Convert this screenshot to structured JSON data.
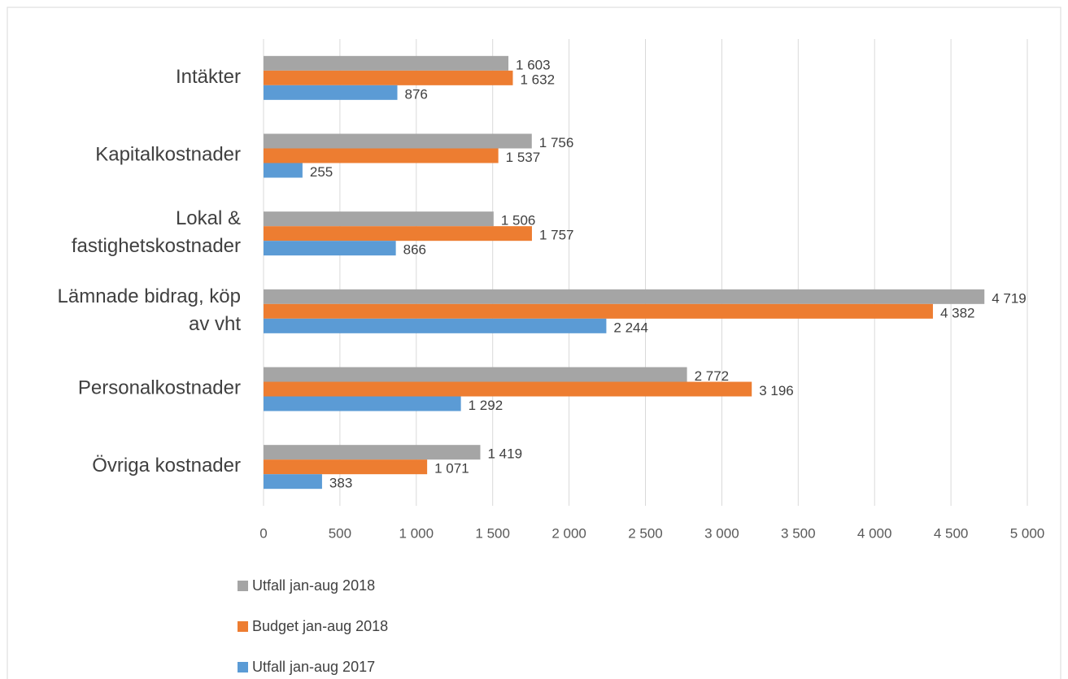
{
  "chart_data": {
    "type": "hbar",
    "categories": [
      "Intäkter",
      "Kapitalkostnader",
      "Lokal & fastighetskostnader",
      "Lämnade bidrag, köp av vht",
      "Personalkostnader",
      "Övriga kostnader"
    ],
    "series": [
      {
        "name": "Utfall jan-aug 2018",
        "color": "#a5a5a5",
        "values": [
          1603,
          1756,
          1506,
          4719,
          2772,
          1419
        ],
        "value_labels": [
          "1 603",
          "1 756",
          "1 506",
          "4 719",
          "2 772",
          "1 419"
        ]
      },
      {
        "name": "Budget jan-aug 2018",
        "color": "#ed7d31",
        "values": [
          1632,
          1537,
          1757,
          4382,
          3196,
          1071
        ],
        "value_labels": [
          "1 632",
          "1 537",
          "1 757",
          "4 382",
          "3 196",
          "1 071"
        ]
      },
      {
        "name": "Utfall jan-aug 2017",
        "color": "#5b9bd5",
        "values": [
          876,
          255,
          866,
          2244,
          1292,
          383
        ],
        "value_labels": [
          "876",
          "255",
          "866",
          "2 244",
          "1 292",
          "383"
        ]
      }
    ],
    "xlim": [
      0,
      5000
    ],
    "xticks": [
      0,
      500,
      {
        "value": 1000,
        "label": "1 000"
      },
      {
        "value": 1500,
        "label": "1 500"
      },
      {
        "value": 2000,
        "label": "2 000"
      },
      {
        "value": 2500,
        "label": "2 500"
      },
      {
        "value": 3000,
        "label": "3 000"
      },
      {
        "value": 3500,
        "label": "3 500"
      },
      {
        "value": 4000,
        "label": "4 000"
      },
      {
        "value": 4500,
        "label": "4 500"
      },
      {
        "value": 5000,
        "label": "5 000"
      }
    ],
    "grid": true,
    "legend": "bottom"
  }
}
